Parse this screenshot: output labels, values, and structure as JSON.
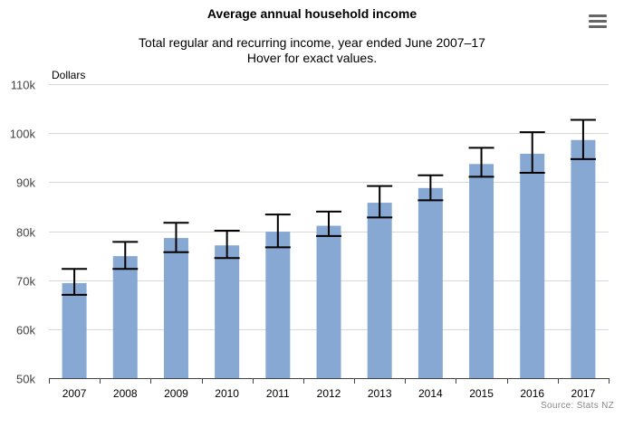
{
  "chart": {
    "title": "Average annual household income",
    "subtitle_line1": "Total regular and recurring income, year ended June 2007–17",
    "subtitle_line2": "Hover for exact values.",
    "y_unit": "Dollars",
    "source": "Source: Stats NZ",
    "menu_icon": "hamburger-menu-icon"
  },
  "chart_data": {
    "type": "bar",
    "title": "Average annual household income",
    "subtitle": "Total regular and recurring income, year ended June 2007–17",
    "xlabel": "",
    "ylabel": "Dollars",
    "ylim": [
      50000,
      110000
    ],
    "yticks": [
      50000,
      60000,
      70000,
      80000,
      90000,
      100000,
      110000
    ],
    "ytick_labels": [
      "50k",
      "60k",
      "70k",
      "80k",
      "90k",
      "100k",
      "110k"
    ],
    "categories": [
      "2007",
      "2008",
      "2009",
      "2010",
      "2011",
      "2012",
      "2013",
      "2014",
      "2015",
      "2016",
      "2017"
    ],
    "values": [
      69400,
      74900,
      78600,
      77100,
      79900,
      81100,
      85800,
      88800,
      93700,
      95800,
      98600
    ],
    "error_low": [
      67000,
      72300,
      75700,
      74500,
      76700,
      79000,
      82800,
      86300,
      91100,
      91900,
      94700
    ],
    "error_high": [
      72300,
      77800,
      81700,
      80100,
      83400,
      84000,
      89200,
      91400,
      97000,
      100200,
      102700
    ],
    "grid": true,
    "legend": "none",
    "bar_color": "#86a8d2",
    "error_bar_color": "#000000"
  }
}
